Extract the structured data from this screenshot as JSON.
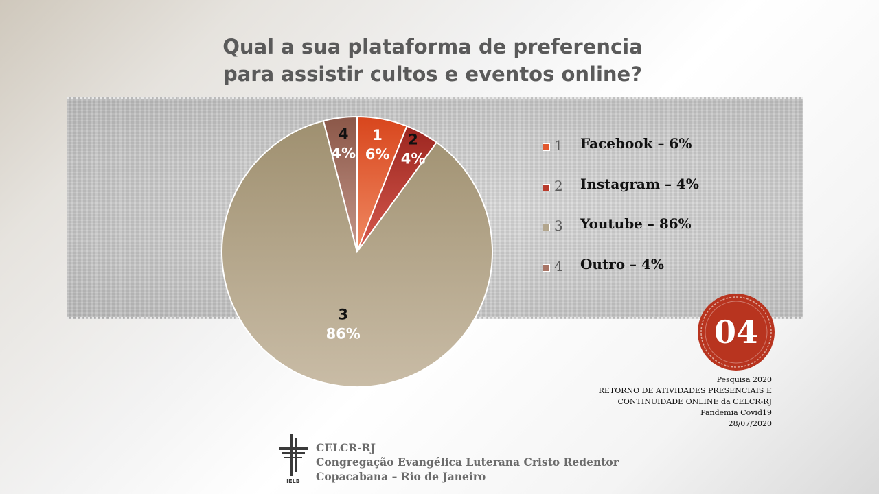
{
  "slide": {
    "title_line1": "Qual a sua plataforma de preferencia",
    "title_line2": "para assistir cultos e eventos online?"
  },
  "chart_data": {
    "type": "pie",
    "title": "Qual a sua plataforma de preferencia para assistir cultos e eventos online?",
    "categories": [
      "1",
      "2",
      "3",
      "4"
    ],
    "values": [
      6,
      4,
      86,
      4
    ],
    "slice_labels": [
      "6%",
      "4%",
      "86%",
      "4%"
    ],
    "legend": [
      "Facebook – 6%",
      "Instagram – 4%",
      "Youtube – 86%",
      "Outro – 4%"
    ],
    "colors": [
      "#e2582e",
      "#b93b2c",
      "#b3a68d",
      "#a87465"
    ],
    "legend_placement": "right"
  },
  "badge": {
    "number": "04",
    "color": "#b8341f"
  },
  "info": {
    "line1": "Pesquisa 2020",
    "line2": "RETORNO DE ATIVIDADES PRESENCIAIS E",
    "line3": "CONTINUIDADE ONLINE da CELCR-RJ",
    "line4": "Pandemia Covid19",
    "line5": "28/07/2020"
  },
  "org": {
    "name": "CELCR-RJ",
    "full_name": "Congregação Evangélica Luterana Cristo Redentor",
    "location": "Copacabana – Rio de Janeiro",
    "logo_icon": "ielb-cross-icon",
    "logo_text": "IELB"
  }
}
